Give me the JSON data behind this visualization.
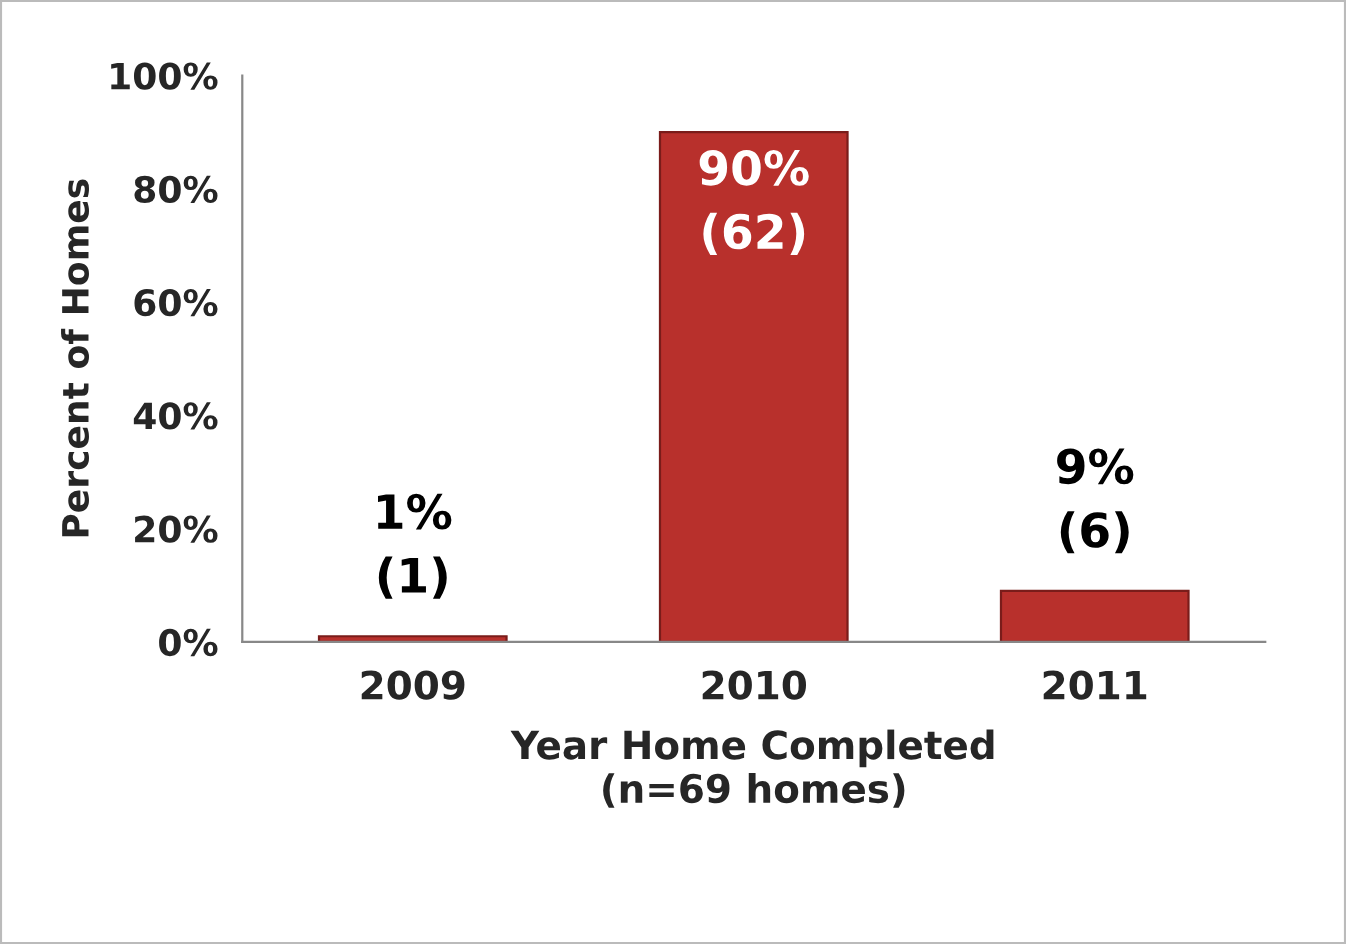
{
  "chart_data": {
    "type": "bar",
    "categories": [
      "2009",
      "2010",
      "2011"
    ],
    "values": [
      1,
      90,
      9
    ],
    "value_labels": [
      "1%\n(1)",
      "90%\n(62)",
      "9%\n(6)"
    ],
    "color": "#b8302c",
    "xlabel": "Year Home Completed\n(n=69 homes)",
    "ylabel": "Percent of Homes",
    "ylim": [
      0,
      100
    ],
    "yticks": [
      {
        "value": 0,
        "label": "0%"
      },
      {
        "value": 20,
        "label": "20%"
      },
      {
        "value": 40,
        "label": "40%"
      },
      {
        "value": 60,
        "label": "60%"
      },
      {
        "value": 80,
        "label": "80%"
      },
      {
        "value": 100,
        "label": "100%"
      }
    ],
    "grid": false,
    "legend": false
  }
}
